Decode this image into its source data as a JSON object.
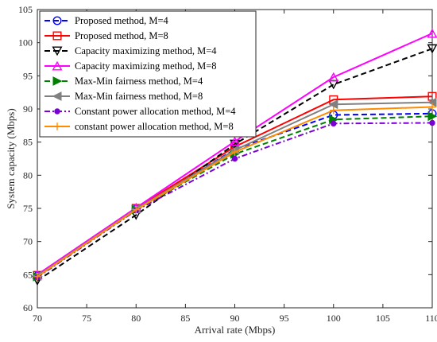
{
  "chart_data": {
    "type": "line",
    "title": "",
    "xlabel": "Arrival rate (Mbps)",
    "ylabel": "System capacity (Mbps)",
    "xlim": [
      70,
      110
    ],
    "ylim": [
      60,
      105
    ],
    "xticks": [
      70,
      75,
      80,
      85,
      90,
      95,
      100,
      105,
      110
    ],
    "yticks": [
      60,
      65,
      70,
      75,
      80,
      85,
      90,
      95,
      100,
      105
    ],
    "x": [
      70,
      80,
      90,
      100,
      110
    ],
    "grid": false,
    "legend_position": "top-left",
    "series": [
      {
        "name": "Proposed method, M=4",
        "values": [
          64.8,
          74.9,
          83.9,
          89.1,
          89.3
        ],
        "color": "#0000ff",
        "dash": "dashed",
        "marker": "circle"
      },
      {
        "name": "Proposed method, M=8",
        "values": [
          64.9,
          75.0,
          84.3,
          91.4,
          91.9
        ],
        "color": "#ff0000",
        "dash": "solid",
        "marker": "square"
      },
      {
        "name": "Capacity maximizing method, M=4",
        "values": [
          64.1,
          74.0,
          84.7,
          93.7,
          99.1
        ],
        "color": "#000000",
        "dash": "dashed",
        "marker": "triangle-down"
      },
      {
        "name": "Capacity maximizing method, M=8",
        "values": [
          65.0,
          75.1,
          85.1,
          94.8,
          101.4
        ],
        "color": "#ff00ff",
        "dash": "solid",
        "marker": "triangle-up"
      },
      {
        "name": "Max-Min fairness method, M=4",
        "values": [
          64.7,
          74.8,
          83.2,
          88.4,
          88.9
        ],
        "color": "#008000",
        "dash": "dashed",
        "marker": "triangle-right"
      },
      {
        "name": "Max-Min fairness method, M=8",
        "values": [
          64.8,
          74.9,
          83.8,
          90.7,
          91.0
        ],
        "color": "#808080",
        "dash": "solid",
        "marker": "triangle-left"
      },
      {
        "name": "Constant power allocation method, M=4",
        "values": [
          64.6,
          74.7,
          82.5,
          87.8,
          87.9
        ],
        "color": "#7b00d4",
        "dash": "dashdot",
        "marker": "dot"
      },
      {
        "name": "constant power allocation method, M=8",
        "values": [
          64.7,
          74.8,
          83.5,
          89.8,
          90.3
        ],
        "color": "#ff8c00",
        "dash": "solid",
        "marker": "plus"
      }
    ]
  }
}
